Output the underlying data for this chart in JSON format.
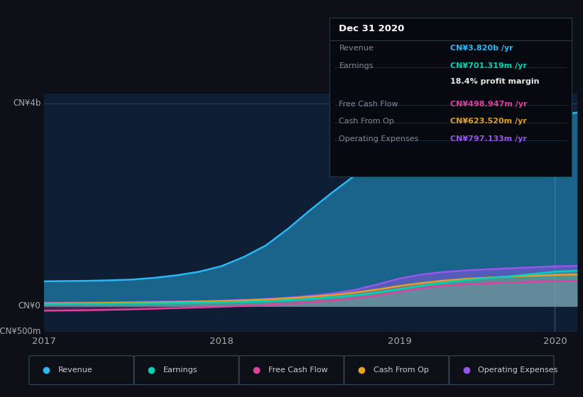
{
  "background_color": "#0d1117",
  "plot_bg_color": "#0e1e35",
  "ylabel_top": "CN¥4b",
  "ylabel_bottom": "-CN¥500m",
  "ylabel_zero": "CN¥0",
  "x_ticks": [
    "2017",
    "2018",
    "2019",
    "2020"
  ],
  "series_order": [
    "Revenue",
    "Operating Expenses",
    "Cash From Op",
    "Free Cash Flow",
    "Earnings"
  ],
  "series": {
    "Revenue": {
      "color": "#2ab8f5",
      "fill_alpha": 0.45,
      "values": [
        490,
        495,
        500,
        510,
        525,
        560,
        610,
        680,
        790,
        970,
        1200,
        1530,
        1900,
        2250,
        2580,
        2820,
        2980,
        3100,
        3200,
        3310,
        3420,
        3530,
        3650,
        3760,
        3820
      ]
    },
    "Earnings": {
      "color": "#00d4b4",
      "fill_alpha": 0.35,
      "values": [
        45,
        47,
        49,
        51,
        54,
        58,
        63,
        68,
        75,
        85,
        98,
        118,
        145,
        178,
        215,
        270,
        335,
        405,
        465,
        515,
        555,
        590,
        635,
        680,
        701
      ]
    },
    "Free Cash Flow": {
      "color": "#e040a0",
      "fill_alpha": 0.25,
      "values": [
        -90,
        -85,
        -80,
        -72,
        -62,
        -50,
        -38,
        -25,
        -12,
        5,
        25,
        48,
        78,
        112,
        158,
        208,
        285,
        355,
        400,
        432,
        452,
        468,
        481,
        492,
        499
      ]
    },
    "Cash From Op": {
      "color": "#e8a020",
      "fill_alpha": 0.3,
      "values": [
        55,
        58,
        61,
        65,
        70,
        76,
        82,
        89,
        99,
        113,
        130,
        155,
        185,
        220,
        268,
        328,
        398,
        456,
        504,
        540,
        563,
        582,
        600,
        616,
        624
      ]
    },
    "Operating Expenses": {
      "color": "#9955ee",
      "fill_alpha": 0.45,
      "values": [
        65,
        68,
        71,
        75,
        80,
        86,
        92,
        98,
        108,
        123,
        143,
        168,
        205,
        252,
        320,
        428,
        545,
        625,
        674,
        704,
        728,
        748,
        767,
        784,
        797
      ]
    }
  },
  "tooltip": {
    "title": "Dec 31 2020",
    "rows": [
      {
        "label": "Revenue",
        "value": "CN¥3.820b /yr",
        "label_color": "#888899",
        "value_color": "#2ab8f5"
      },
      {
        "label": "Earnings",
        "value": "CN¥701.319m /yr",
        "label_color": "#888899",
        "value_color": "#00d4b4"
      },
      {
        "label": "",
        "value": "18.4% profit margin",
        "label_color": "#888899",
        "value_color": "#e8e8e8"
      },
      {
        "label": "Free Cash Flow",
        "value": "CN¥498.947m /yr",
        "label_color": "#888899",
        "value_color": "#e040a0"
      },
      {
        "label": "Cash From Op",
        "value": "CN¥623.520m /yr",
        "label_color": "#888899",
        "value_color": "#e8a020"
      },
      {
        "label": "Operating Expenses",
        "value": "CN¥797.133m /yr",
        "label_color": "#888899",
        "value_color": "#9955ee"
      }
    ]
  },
  "legend": [
    {
      "label": "Revenue",
      "color": "#2ab8f5"
    },
    {
      "label": "Earnings",
      "color": "#00d4b4"
    },
    {
      "label": "Free Cash Flow",
      "color": "#e040a0"
    },
    {
      "label": "Cash From Op",
      "color": "#e8a020"
    },
    {
      "label": "Operating Expenses",
      "color": "#9955ee"
    }
  ],
  "ylim": [
    -500,
    4200
  ],
  "n_points": 25,
  "vline_x": 23
}
